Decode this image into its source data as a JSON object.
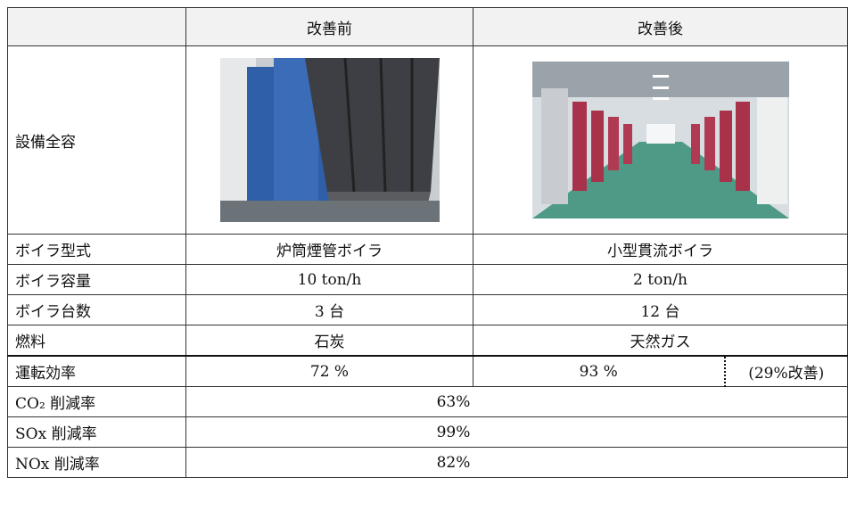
{
  "table": {
    "header": [
      "改善前",
      "改善後"
    ],
    "image_row_label": "設備全容",
    "rows": [
      {
        "label": "ボイラ型式",
        "before": "炉筒煙管ボイラ",
        "after": "小型貫流ボイラ"
      },
      {
        "label": "ボイラ容量",
        "before": "10 ton/h",
        "after": "2 ton/h"
      },
      {
        "label": "ボイラ台数",
        "before": "3 台",
        "after": "12 台"
      },
      {
        "label": "燃料",
        "before": "石炭",
        "after": "天然ガス"
      }
    ],
    "efficiency": {
      "label": "運転効率",
      "before": "72 %",
      "after": "93 %",
      "note": "(29%改善)"
    },
    "reductions": [
      {
        "label": "CO₂ 削減率",
        "value": "63%"
      },
      {
        "label": "SOx 削減率",
        "value": "99%"
      },
      {
        "label": "NOx 削減率",
        "value": "82%"
      }
    ]
  }
}
